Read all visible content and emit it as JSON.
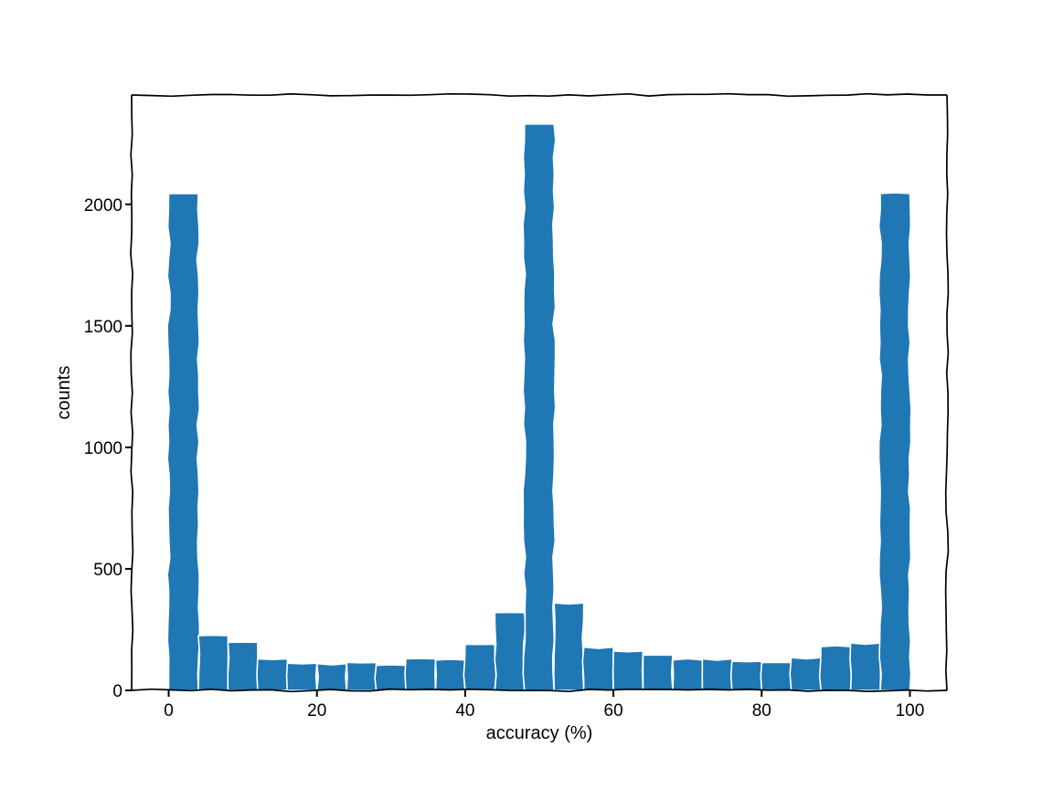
{
  "chart_data": {
    "type": "bar",
    "style": "hand-drawn histogram",
    "title": "",
    "xlabel": "accuracy (%)",
    "ylabel": "counts",
    "xlim": [
      -5,
      105
    ],
    "ylim": [
      0,
      2450
    ],
    "bin_width": 4,
    "xticks": [
      0,
      20,
      40,
      60,
      80,
      100
    ],
    "yticks": [
      0,
      500,
      1000,
      1500,
      2000
    ],
    "bars_color": "#1f77b4",
    "edge_color": "#ffffff",
    "frame_color": "#000000",
    "grid": false,
    "legend": "none",
    "bins": [
      {
        "x0": 0,
        "x1": 4,
        "value": 2045
      },
      {
        "x0": 4,
        "x1": 8,
        "value": 225
      },
      {
        "x0": 8,
        "x1": 12,
        "value": 198
      },
      {
        "x0": 12,
        "x1": 16,
        "value": 130
      },
      {
        "x0": 16,
        "x1": 20,
        "value": 112
      },
      {
        "x0": 20,
        "x1": 24,
        "value": 110
      },
      {
        "x0": 24,
        "x1": 28,
        "value": 115
      },
      {
        "x0": 28,
        "x1": 32,
        "value": 103
      },
      {
        "x0": 32,
        "x1": 36,
        "value": 130
      },
      {
        "x0": 36,
        "x1": 40,
        "value": 125
      },
      {
        "x0": 40,
        "x1": 44,
        "value": 190
      },
      {
        "x0": 44,
        "x1": 48,
        "value": 320
      },
      {
        "x0": 48,
        "x1": 52,
        "value": 2330
      },
      {
        "x0": 52,
        "x1": 56,
        "value": 360
      },
      {
        "x0": 56,
        "x1": 60,
        "value": 178
      },
      {
        "x0": 60,
        "x1": 64,
        "value": 162
      },
      {
        "x0": 64,
        "x1": 68,
        "value": 145
      },
      {
        "x0": 68,
        "x1": 72,
        "value": 125
      },
      {
        "x0": 72,
        "x1": 76,
        "value": 130
      },
      {
        "x0": 76,
        "x1": 80,
        "value": 120
      },
      {
        "x0": 80,
        "x1": 84,
        "value": 115
      },
      {
        "x0": 84,
        "x1": 88,
        "value": 135
      },
      {
        "x0": 88,
        "x1": 92,
        "value": 180
      },
      {
        "x0": 92,
        "x1": 96,
        "value": 195
      },
      {
        "x0": 96,
        "x1": 100,
        "value": 2045
      }
    ]
  }
}
